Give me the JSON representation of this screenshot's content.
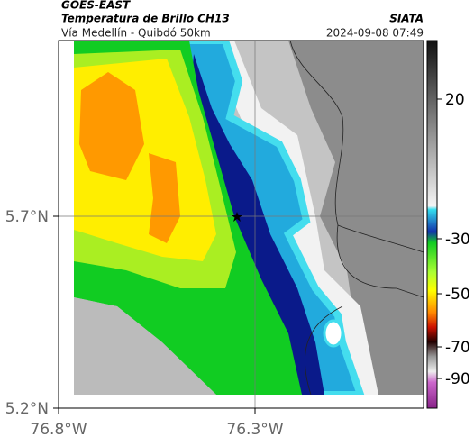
{
  "header": {
    "source": "GOES-EAST",
    "title": "Temperatura de Brillo CH13",
    "subtitle": "Vía Medellín - Quibdó 50km",
    "credit": "SIATA",
    "date": "2024-09-08 07:49"
  },
  "axes": {
    "lat_ticks": [
      "5.7°N",
      "5.2°N"
    ],
    "lon_ticks": [
      "76.8°W",
      "76.3°W"
    ]
  },
  "colorbar": {
    "ticks": [
      20,
      -30,
      -50,
      -70,
      -90
    ]
  }
}
